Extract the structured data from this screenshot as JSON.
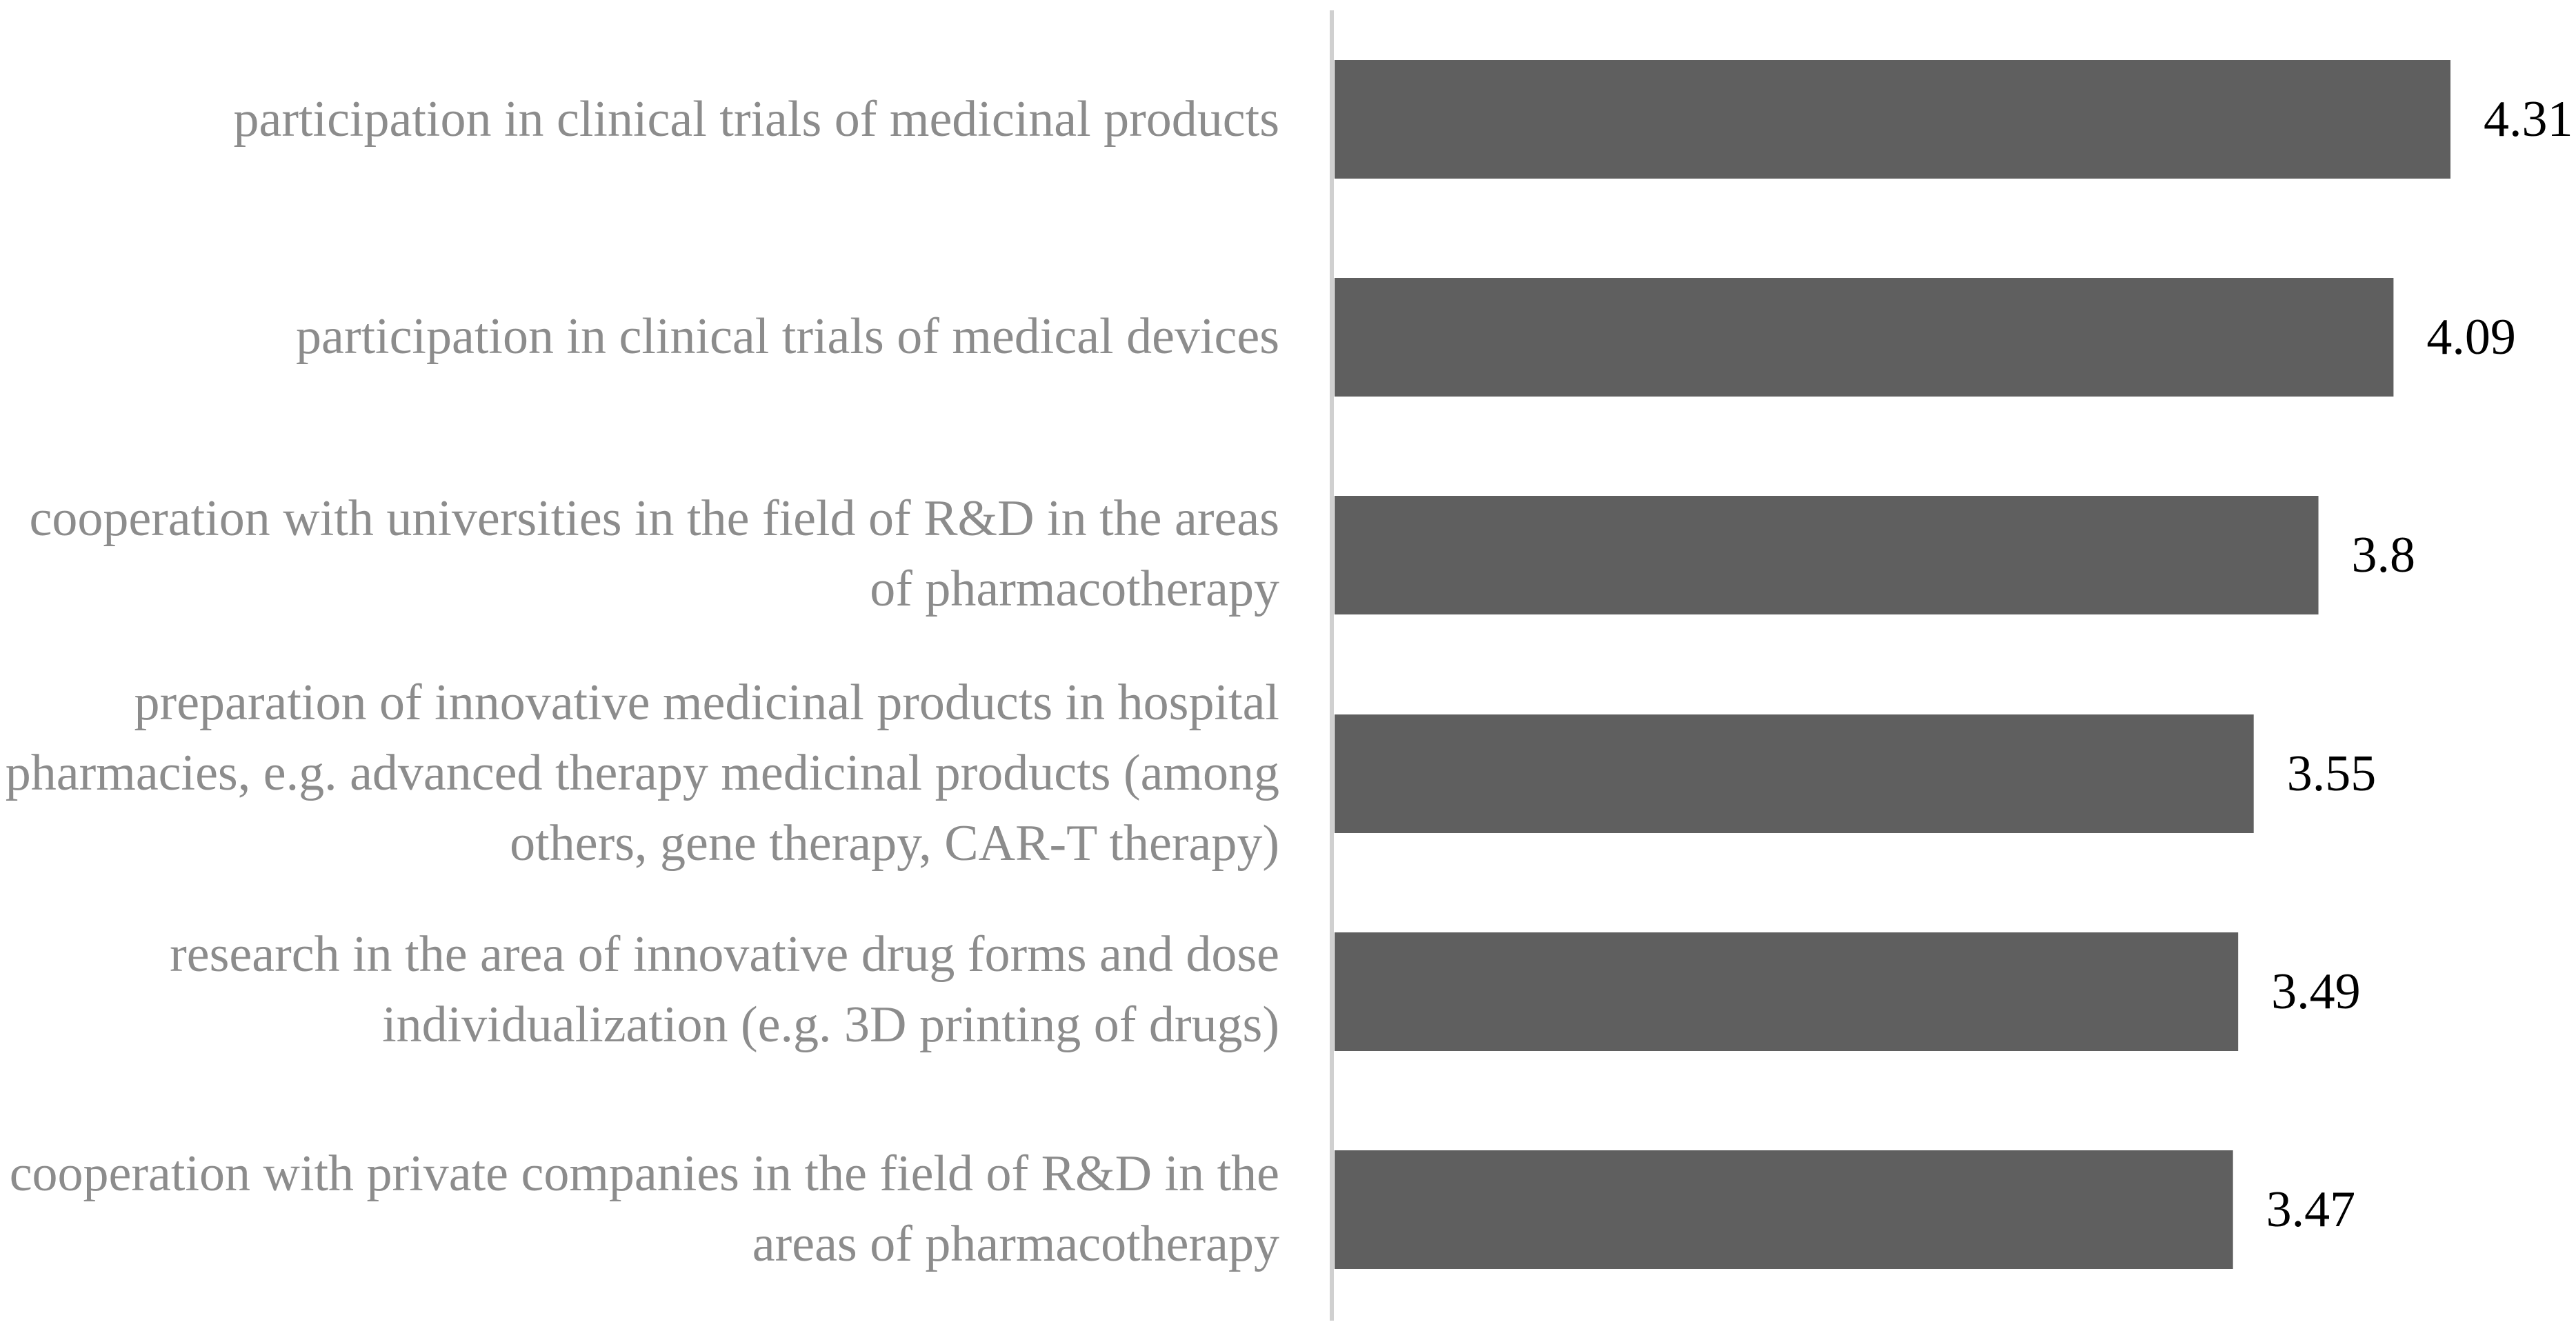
{
  "chart_data": {
    "type": "bar",
    "orientation": "horizontal",
    "title": "",
    "xlabel": "",
    "ylabel": "",
    "categories": [
      "participation in clinical trials of medicinal products",
      "participation in clinical trials of medical devices",
      "cooperation with universities in the field of R&D in the areas of pharmacotherapy",
      "preparation of innovative medicinal products in hospital pharmacies, e.g. advanced therapy medicinal products (among others, gene therapy, CAR-T therapy)",
      "research in the area of innovative drug forms and dose individualization (e.g. 3D printing of drugs)",
      "cooperation with private companies in the field of R&D in the areas of pharmacotherapy"
    ],
    "values": [
      4.31,
      4.09,
      3.8,
      3.55,
      3.49,
      3.47
    ],
    "value_labels": [
      "4.31",
      "4.09",
      "3.8",
      "3.55",
      "3.49",
      "3.47"
    ],
    "xlim": [
      0,
      4.31
    ],
    "grid": false,
    "legend": "none",
    "colors": {
      "bar": "#5f5f5f",
      "axis": "#d0d0d0",
      "category_text": "#8c8c8c",
      "value_text": "#000000"
    }
  }
}
